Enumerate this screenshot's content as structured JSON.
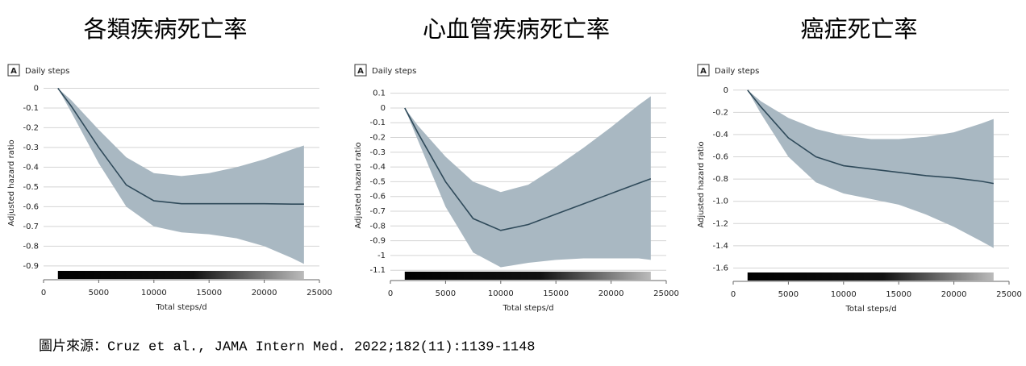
{
  "chart_data": [
    {
      "type": "line",
      "title": "各類疾病死亡率",
      "panel": "A",
      "panel_title": "Daily steps",
      "y_label": "Adjusted hazard ratio",
      "x_label": "Total steps/d",
      "xlim": [
        0,
        25000
      ],
      "xticks": [
        0,
        5000,
        10000,
        15000,
        20000,
        25000
      ],
      "ylim": [
        -0.97,
        0.01
      ],
      "yticks": [
        0,
        -0.1,
        -0.2,
        -0.3,
        -0.4,
        -0.5,
        -0.6,
        -0.7,
        -0.8,
        -0.9
      ],
      "grid": true,
      "line_color": "#2f4a5a",
      "band_color": "#a9b8c2",
      "x": [
        1300,
        2500,
        5000,
        7500,
        10000,
        12500,
        15000,
        17500,
        20000,
        22500,
        23600
      ],
      "values": [
        0,
        -0.09,
        -0.3,
        -0.49,
        -0.57,
        -0.585,
        -0.585,
        -0.585,
        -0.585,
        -0.587,
        -0.587
      ],
      "upper": [
        0,
        -0.06,
        -0.21,
        -0.35,
        -0.43,
        -0.445,
        -0.43,
        -0.4,
        -0.36,
        -0.31,
        -0.29
      ],
      "lower": [
        0,
        -0.12,
        -0.38,
        -0.6,
        -0.7,
        -0.73,
        -0.74,
        -0.76,
        -0.8,
        -0.86,
        -0.89
      ]
    },
    {
      "type": "line",
      "title": "心血管疾病死亡率",
      "panel": "A",
      "panel_title": "Daily steps",
      "y_label": "Adjusted hazard ratio",
      "x_label": "Total steps/d",
      "xlim": [
        0,
        25000
      ],
      "xticks": [
        0,
        5000,
        10000,
        15000,
        20000,
        25000
      ],
      "ylim": [
        -1.17,
        0.12
      ],
      "yticks": [
        0.1,
        0,
        -0.1,
        -0.2,
        -0.3,
        -0.4,
        -0.5,
        -0.6,
        -0.7,
        -0.8,
        -0.9,
        -1.0,
        -1.1
      ],
      "grid": true,
      "line_color": "#2f4a5a",
      "band_color": "#a9b8c2",
      "x": [
        1300,
        2500,
        5000,
        7500,
        10000,
        12500,
        15000,
        17500,
        20000,
        22500,
        23600
      ],
      "values": [
        0,
        -0.17,
        -0.5,
        -0.75,
        -0.83,
        -0.79,
        -0.72,
        -0.65,
        -0.58,
        -0.51,
        -0.48
      ],
      "upper": [
        0,
        -0.12,
        -0.33,
        -0.5,
        -0.57,
        -0.52,
        -0.4,
        -0.27,
        -0.13,
        0.02,
        0.08
      ],
      "lower": [
        0,
        -0.22,
        -0.67,
        -0.98,
        -1.08,
        -1.05,
        -1.03,
        -1.02,
        -1.02,
        -1.02,
        -1.03
      ]
    },
    {
      "type": "line",
      "title": "癌症死亡率",
      "panel": "A",
      "panel_title": "Daily steps",
      "y_label": "Adjusted hazard ratio",
      "x_label": "Total steps/d",
      "xlim": [
        0,
        25000
      ],
      "xticks": [
        0,
        5000,
        10000,
        15000,
        20000,
        25000
      ],
      "ylim": [
        -1.72,
        0.02
      ],
      "yticks": [
        0,
        -0.2,
        -0.4,
        -0.6,
        -0.8,
        {
          "value": -1,
          "label": "-1.0"
        },
        -1.2,
        -1.4,
        -1.6
      ],
      "grid": true,
      "line_color": "#2f4a5a",
      "band_color": "#a9b8c2",
      "x": [
        1300,
        2500,
        5000,
        7500,
        10000,
        12500,
        15000,
        17500,
        20000,
        22500,
        23600
      ],
      "values": [
        0,
        -0.15,
        -0.43,
        -0.6,
        -0.68,
        -0.71,
        -0.74,
        -0.77,
        -0.79,
        -0.82,
        -0.84
      ],
      "upper": [
        0,
        -0.1,
        -0.25,
        -0.35,
        -0.41,
        -0.44,
        -0.44,
        -0.42,
        -0.38,
        -0.3,
        -0.26
      ],
      "lower": [
        0,
        -0.21,
        -0.6,
        -0.83,
        -0.93,
        -0.98,
        -1.03,
        -1.12,
        -1.23,
        -1.36,
        -1.42
      ]
    }
  ],
  "source": "圖片來源：Cruz et al., JAMA Intern Med. 2022;182(11):1139-1148"
}
